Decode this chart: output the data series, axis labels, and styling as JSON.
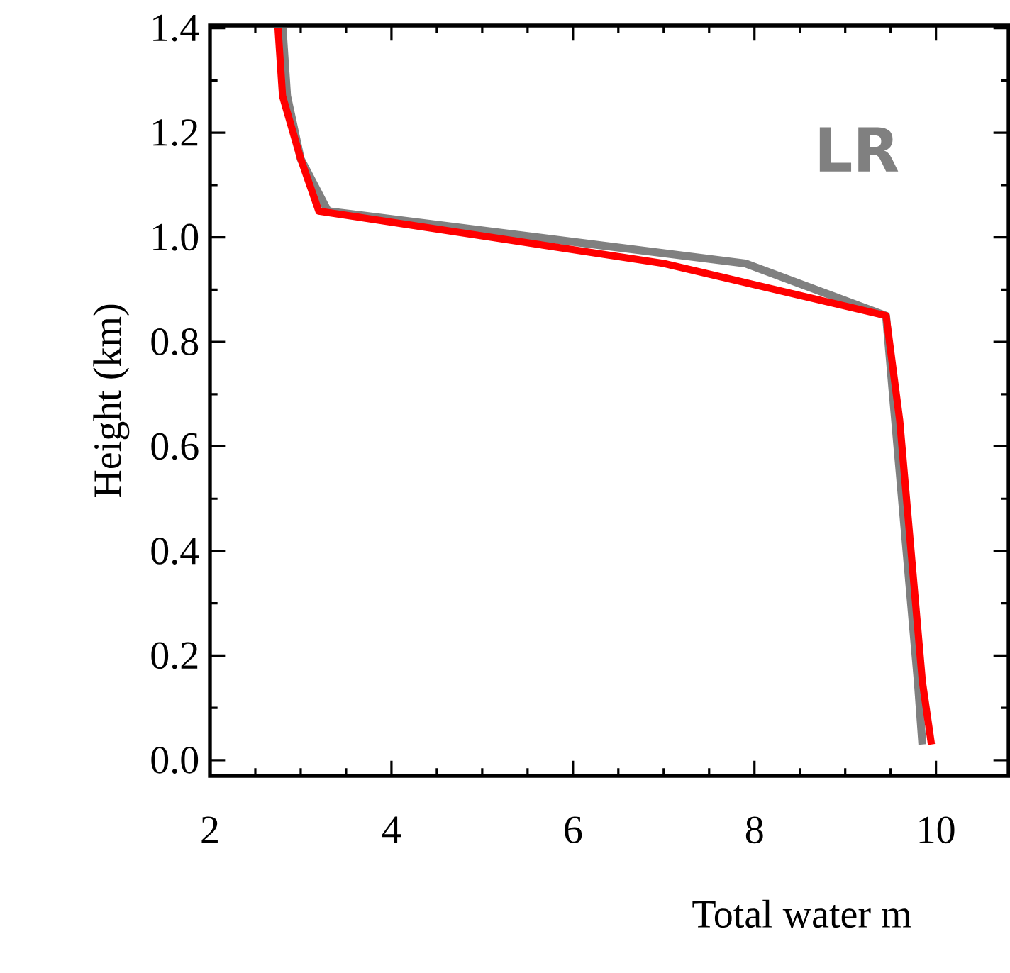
{
  "chart_data": {
    "type": "line",
    "xlabel": "Total water m",
    "ylabel": "Height (km)",
    "annotations": [
      "LR"
    ],
    "xlim": [
      2,
      10.8
    ],
    "ylim": [
      -0.03,
      1.405
    ],
    "xticks": [
      2,
      4,
      6,
      8,
      10
    ],
    "yticks": [
      {
        "value": 0,
        "label": "0.0"
      },
      {
        "value": 0.2,
        "label": "0.2"
      },
      {
        "value": 0.4,
        "label": "0.4"
      },
      {
        "value": 0.6,
        "label": "0.6"
      },
      {
        "value": 0.8,
        "label": "0.8"
      },
      {
        "value": 1.0,
        "label": "1.0"
      },
      {
        "value": 1.2,
        "label": "1.2"
      },
      {
        "value": 1.4,
        "label": "1.4"
      }
    ],
    "grid": false,
    "series": [
      {
        "color": "#808080",
        "x": [
          9.85,
          9.8,
          9.65,
          9.55,
          9.45,
          7.9,
          3.3,
          3.0,
          2.85,
          2.8
        ],
        "values": [
          0.03,
          0.15,
          0.45,
          0.65,
          0.85,
          0.95,
          1.05,
          1.15,
          1.27,
          1.4
        ]
      },
      {
        "color": "#ff0000",
        "x": [
          9.95,
          9.85,
          9.7,
          9.6,
          9.45,
          7.0,
          3.2,
          3.0,
          2.8,
          2.75
        ],
        "values": [
          0.03,
          0.15,
          0.45,
          0.65,
          0.85,
          0.95,
          1.05,
          1.15,
          1.27,
          1.4
        ]
      }
    ]
  }
}
